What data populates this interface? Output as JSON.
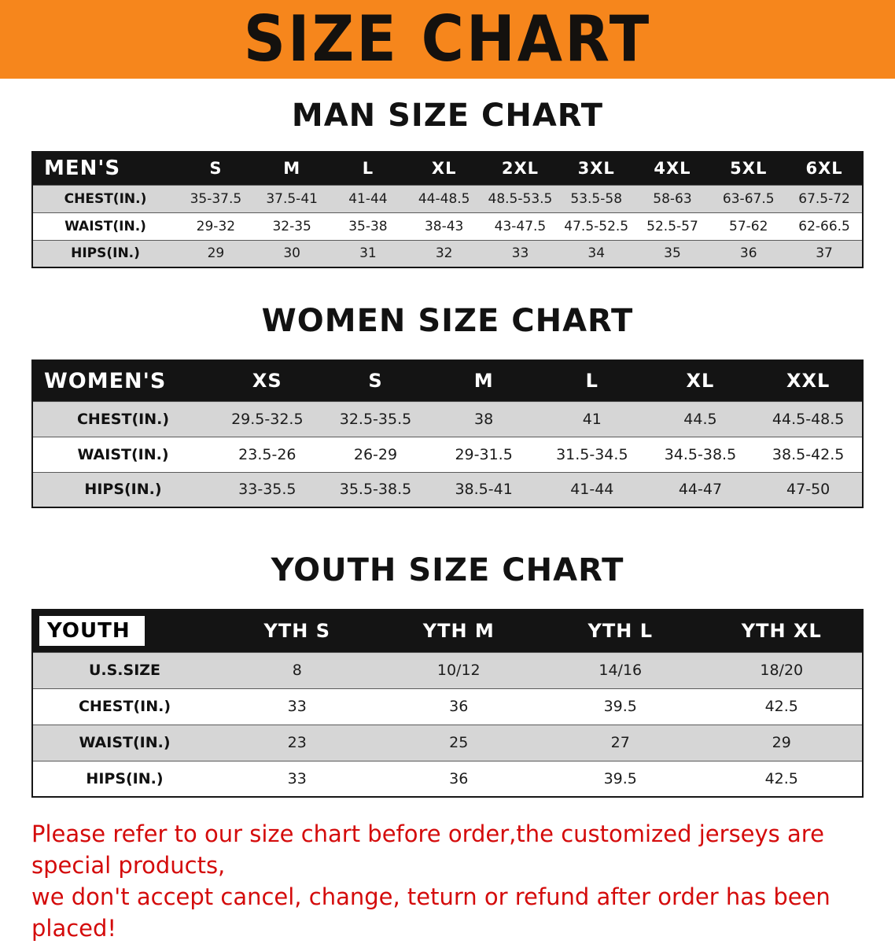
{
  "banner": {
    "title": "SIZE CHART",
    "bg_color": "#f6861c"
  },
  "sections": [
    {
      "id": "mens",
      "heading": "MAN SIZE CHART",
      "table": {
        "header": [
          "MEN'S",
          "S",
          "M",
          "L",
          "XL",
          "2XL",
          "3XL",
          "4XL",
          "5XL",
          "6XL"
        ],
        "rows": [
          {
            "label": "CHEST(IN.)",
            "values": [
              "35-37.5",
              "37.5-41",
              "41-44",
              "44-48.5",
              "48.5-53.5",
              "53.5-58",
              "58-63",
              "63-67.5",
              "67.5-72"
            ]
          },
          {
            "label": "WAIST(IN.)",
            "values": [
              "29-32",
              "32-35",
              "35-38",
              "38-43",
              "43-47.5",
              "47.5-52.5",
              "52.5-57",
              "57-62",
              "62-66.5"
            ]
          },
          {
            "label": "HIPS(IN.)",
            "values": [
              "29",
              "30",
              "31",
              "32",
              "33",
              "34",
              "35",
              "36",
              "37"
            ]
          }
        ]
      }
    },
    {
      "id": "womens",
      "heading": "WOMEN SIZE CHART",
      "table": {
        "header": [
          "WOMEN'S",
          "XS",
          "S",
          "M",
          "L",
          "XL",
          "XXL"
        ],
        "rows": [
          {
            "label": "CHEST(IN.)",
            "values": [
              "29.5-32.5",
              "32.5-35.5",
              "38",
              "41",
              "44.5",
              "44.5-48.5"
            ]
          },
          {
            "label": "WAIST(IN.)",
            "values": [
              "23.5-26",
              "26-29",
              "29-31.5",
              "31.5-34.5",
              "34.5-38.5",
              "38.5-42.5"
            ]
          },
          {
            "label": "HIPS(IN.)",
            "values": [
              "33-35.5",
              "35.5-38.5",
              "38.5-41",
              "41-44",
              "44-47",
              "47-50"
            ]
          }
        ]
      }
    },
    {
      "id": "youth",
      "heading": "YOUTH SIZE CHART",
      "table": {
        "header": [
          "YOUTH",
          "YTH S",
          "YTH M",
          "YTH L",
          "YTH XL"
        ],
        "rows": [
          {
            "label": "U.S.SIZE",
            "values": [
              "8",
              "10/12",
              "14/16",
              "18/20"
            ]
          },
          {
            "label": "CHEST(IN.)",
            "values": [
              "33",
              "36",
              "39.5",
              "42.5"
            ]
          },
          {
            "label": "WAIST(IN.)",
            "values": [
              "23",
              "25",
              "27",
              "29"
            ]
          },
          {
            "label": "HIPS(IN.)",
            "values": [
              "33",
              "36",
              "39.5",
              "42.5"
            ]
          }
        ]
      }
    }
  ],
  "disclaimer": {
    "line1": "Please refer to our size chart before order,the customized jerseys are special products,",
    "line2": "we don't accept cancel, change, teturn or refund after order has been placed!",
    "color": "#d40b0b"
  }
}
